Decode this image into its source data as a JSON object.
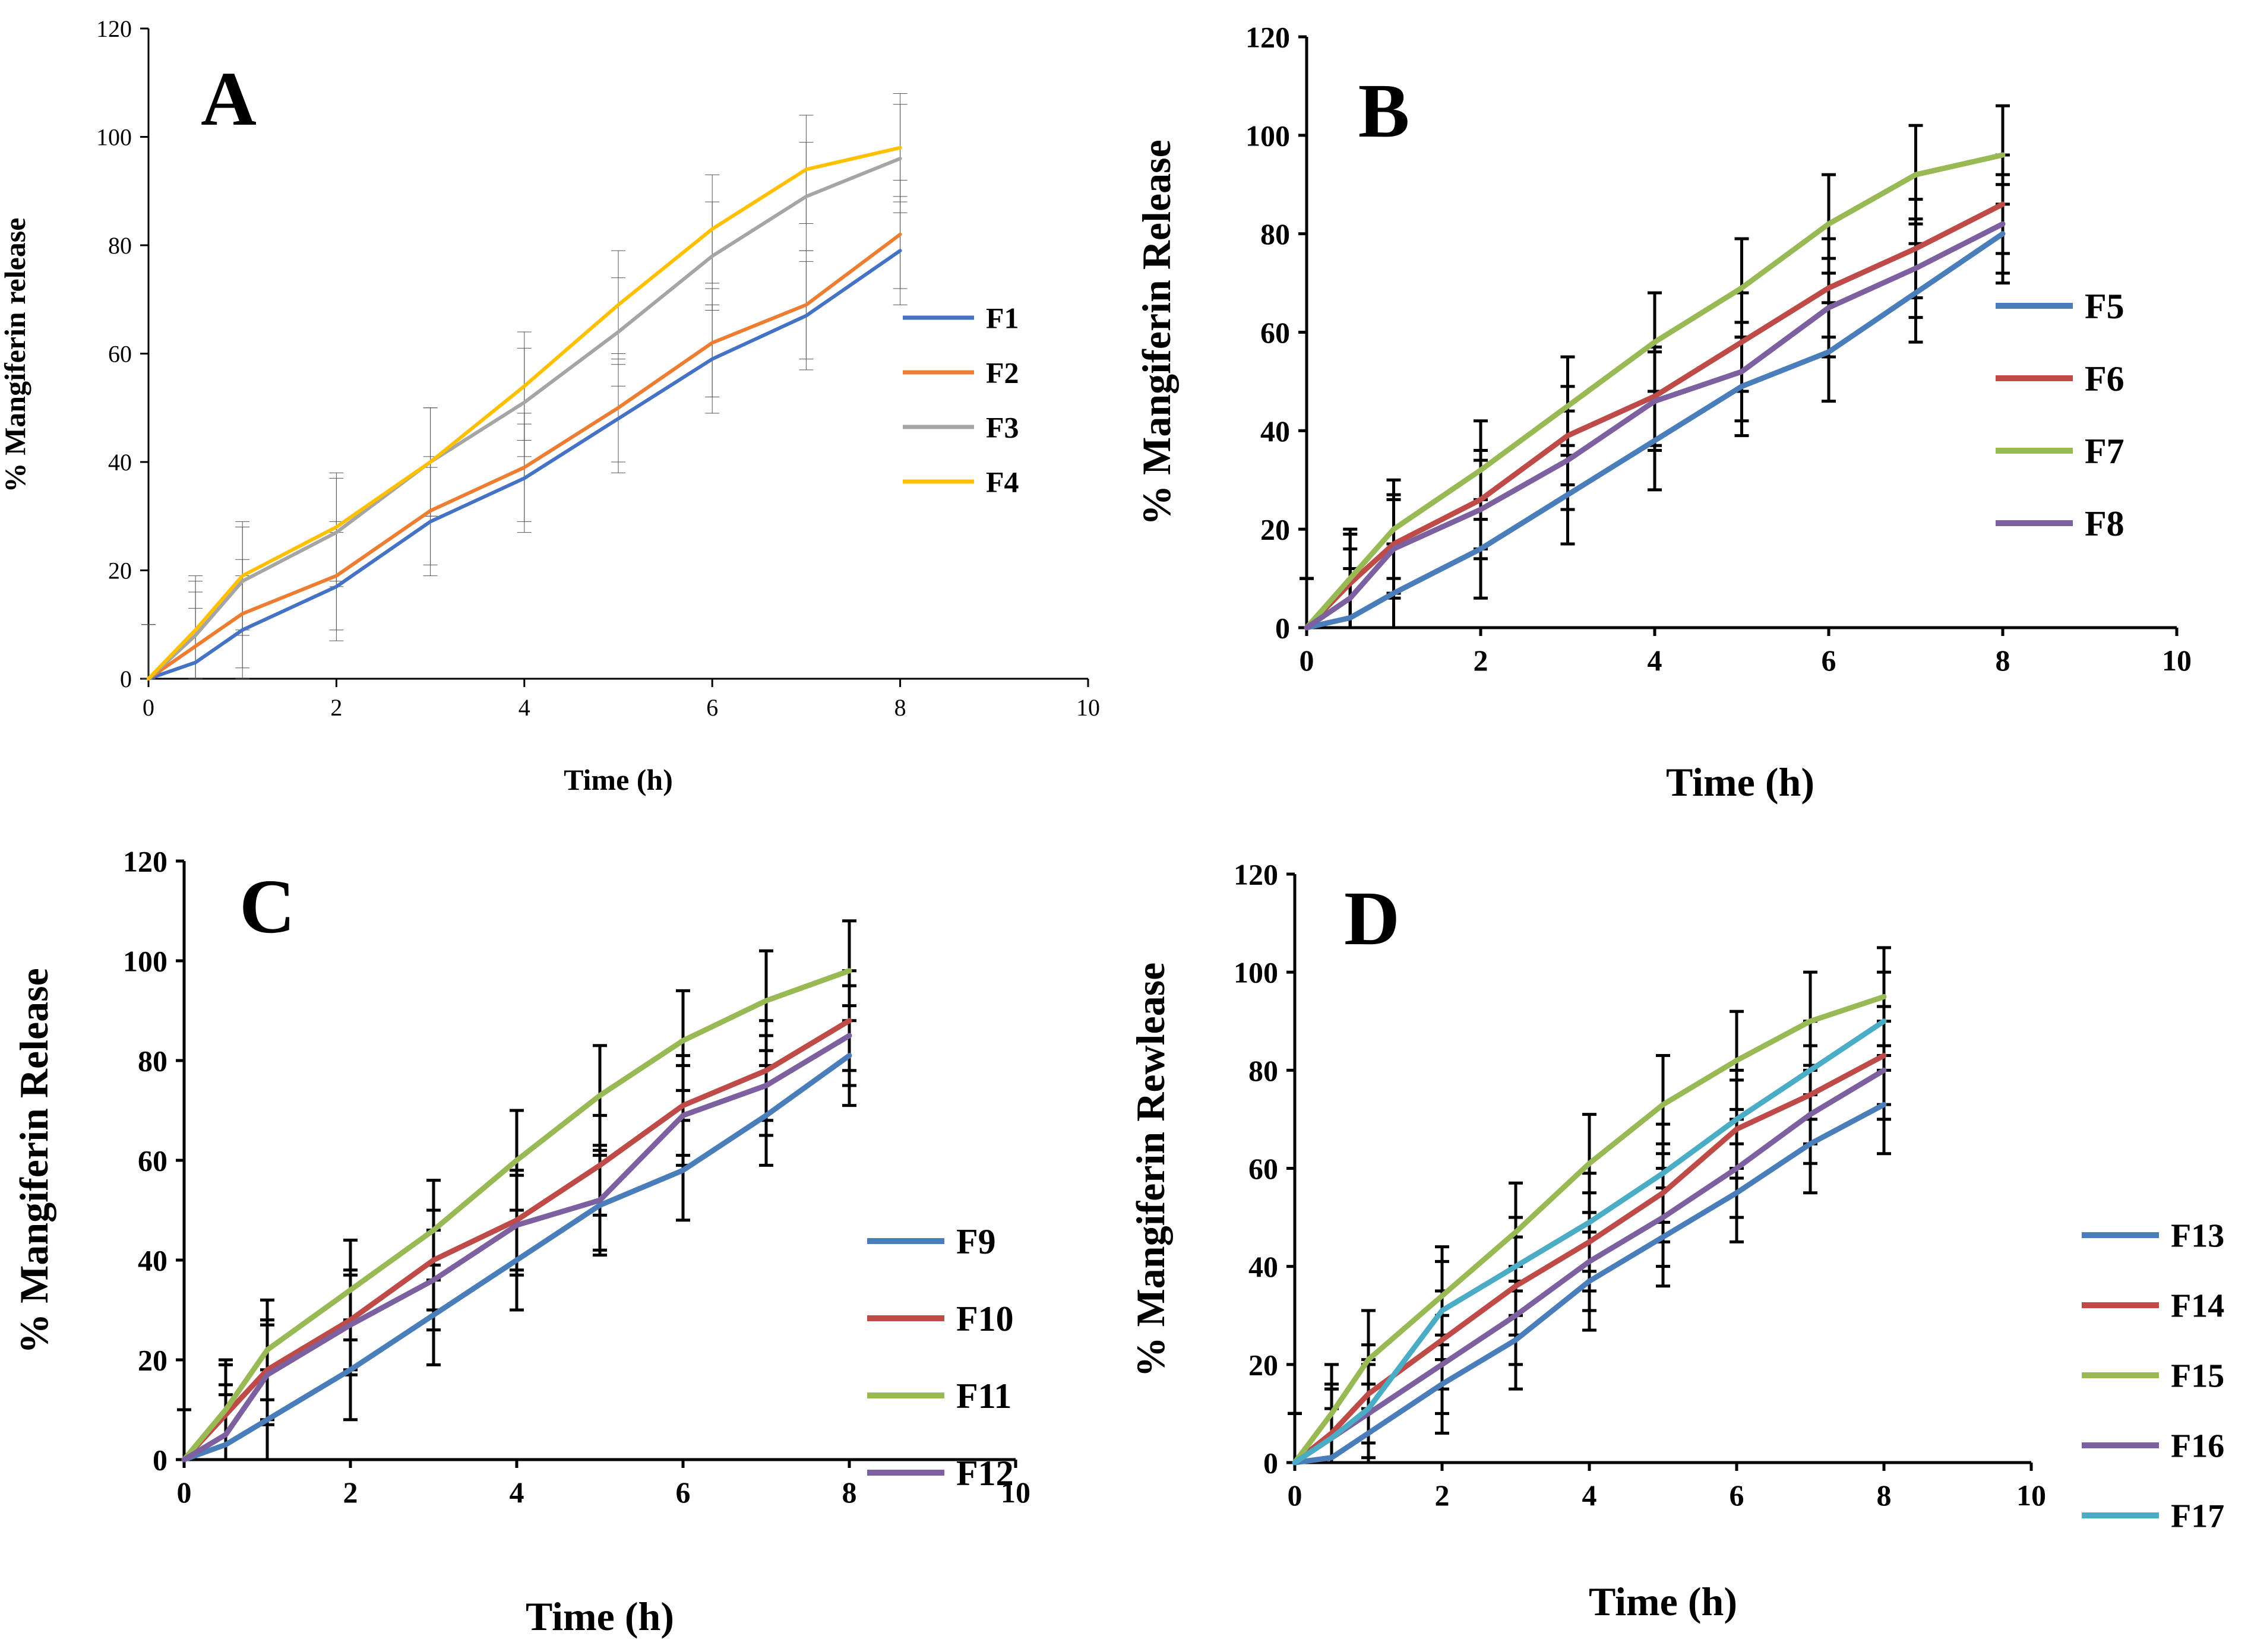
{
  "figure": {
    "background": "#ffffff"
  },
  "chart_data": [
    {
      "type": "line",
      "panel_label": "A",
      "xlabel": "Time (h)",
      "ylabel": "% Mangiferin release",
      "xlim": [
        0,
        10
      ],
      "ylim": [
        0,
        120
      ],
      "xticks": [
        "0",
        "2",
        "4",
        "6",
        "8",
        "10"
      ],
      "yticks": [
        "0",
        "20",
        "40",
        "60",
        "80",
        "100",
        "120"
      ],
      "grid": false,
      "legend_position": "right",
      "error_bar_color": "#555555",
      "x": [
        0,
        0.5,
        1,
        2,
        3,
        4,
        5,
        6,
        7,
        8
      ],
      "series": [
        {
          "name": "F1",
          "color": "#4472C4",
          "values": [
            0,
            3,
            9,
            17,
            29,
            37,
            48,
            59,
            67,
            79
          ],
          "errors": [
            10,
            10,
            10,
            10,
            10,
            10,
            10,
            10,
            10,
            10
          ]
        },
        {
          "name": "F2",
          "color": "#ED7D31",
          "values": [
            0,
            6,
            12,
            19,
            31,
            39,
            50,
            62,
            69,
            82
          ],
          "errors": [
            10,
            10,
            10,
            10,
            10,
            10,
            10,
            10,
            10,
            10
          ]
        },
        {
          "name": "F3",
          "color": "#A5A5A5",
          "values": [
            0,
            8,
            18,
            27,
            40,
            51,
            64,
            78,
            89,
            96
          ],
          "errors": [
            10,
            10,
            10,
            10,
            10,
            10,
            10,
            10,
            10,
            10
          ]
        },
        {
          "name": "F4",
          "color": "#FFC000",
          "values": [
            0,
            9,
            19,
            28,
            40,
            54,
            69,
            83,
            94,
            98
          ],
          "errors": [
            10,
            10,
            10,
            10,
            10,
            10,
            10,
            10,
            10,
            10
          ]
        }
      ]
    },
    {
      "type": "line",
      "panel_label": "B",
      "xlabel": "Time (h)",
      "ylabel": "% Mangiferin Release",
      "xlim": [
        0,
        10
      ],
      "ylim": [
        0,
        120
      ],
      "xticks": [
        "0",
        "2",
        "4",
        "6",
        "8",
        "10"
      ],
      "yticks": [
        "0",
        "20",
        "40",
        "60",
        "80",
        "100",
        "120"
      ],
      "grid": false,
      "legend_position": "right",
      "error_bar_color": "#000000",
      "x": [
        0,
        0.5,
        1,
        2,
        3,
        4,
        5,
        6,
        7,
        8
      ],
      "series": [
        {
          "name": "F5",
          "color": "#4A7EBB",
          "values": [
            0,
            2,
            7,
            16,
            27,
            38,
            49,
            56,
            68,
            80
          ],
          "errors": [
            10,
            10,
            10,
            10,
            10,
            10,
            10,
            10,
            10,
            10
          ]
        },
        {
          "name": "F6",
          "color": "#BE4B48",
          "values": [
            0,
            9,
            17,
            26,
            39,
            47,
            58,
            69,
            77,
            86
          ],
          "errors": [
            10,
            10,
            10,
            10,
            10,
            10,
            10,
            10,
            10,
            10
          ]
        },
        {
          "name": "F7",
          "color": "#98B954",
          "values": [
            0,
            10,
            20,
            32,
            45,
            58,
            69,
            82,
            92,
            96
          ],
          "errors": [
            10,
            10,
            10,
            10,
            10,
            10,
            10,
            10,
            10,
            10
          ]
        },
        {
          "name": "F8",
          "color": "#7D60A0",
          "values": [
            0,
            6,
            16,
            24,
            34,
            46,
            52,
            65,
            73,
            82
          ],
          "errors": [
            10,
            10,
            10,
            10,
            10,
            10,
            10,
            10,
            10,
            10
          ]
        }
      ]
    },
    {
      "type": "line",
      "panel_label": "C",
      "xlabel": "Time (h)",
      "ylabel": "% Mangiferin Release",
      "xlim": [
        0,
        10
      ],
      "ylim": [
        0,
        120
      ],
      "xticks": [
        "0",
        "2",
        "4",
        "6",
        "8",
        "10"
      ],
      "yticks": [
        "0",
        "20",
        "40",
        "60",
        "80",
        "100",
        "120"
      ],
      "grid": false,
      "legend_position": "right",
      "error_bar_color": "#000000",
      "x": [
        0,
        0.5,
        1,
        2,
        3,
        4,
        5,
        6,
        7,
        8
      ],
      "series": [
        {
          "name": "F9",
          "color": "#4A7EBB",
          "values": [
            0,
            3,
            8,
            18,
            29,
            40,
            51,
            58,
            69,
            81
          ],
          "errors": [
            10,
            10,
            10,
            10,
            10,
            10,
            10,
            10,
            10,
            10
          ]
        },
        {
          "name": "F10",
          "color": "#BE4B48",
          "values": [
            0,
            9,
            18,
            28,
            40,
            48,
            59,
            71,
            78,
            88
          ],
          "errors": [
            10,
            10,
            10,
            10,
            10,
            10,
            10,
            10,
            10,
            10
          ]
        },
        {
          "name": "F11",
          "color": "#98B954",
          "values": [
            0,
            10,
            22,
            34,
            46,
            60,
            73,
            84,
            92,
            98
          ],
          "errors": [
            10,
            10,
            10,
            10,
            10,
            10,
            10,
            10,
            10,
            10
          ]
        },
        {
          "name": "F12",
          "color": "#7D60A0",
          "values": [
            0,
            5,
            17,
            27,
            36,
            47,
            52,
            69,
            75,
            85
          ],
          "errors": [
            10,
            10,
            10,
            10,
            10,
            10,
            10,
            10,
            10,
            10
          ]
        }
      ]
    },
    {
      "type": "line",
      "panel_label": "D",
      "xlabel": "Time (h)",
      "ylabel": "% Mangiferin Rewlease",
      "xlim": [
        0,
        10
      ],
      "ylim": [
        0,
        120
      ],
      "xticks": [
        "0",
        "2",
        "4",
        "6",
        "8",
        "10"
      ],
      "yticks": [
        "0",
        "20",
        "40",
        "60",
        "80",
        "100",
        "120"
      ],
      "grid": false,
      "legend_position": "right",
      "error_bar_color": "#000000",
      "x": [
        0,
        0.5,
        1,
        2,
        3,
        4,
        5,
        6,
        7,
        8
      ],
      "series": [
        {
          "name": "F13",
          "color": "#4A7EBB",
          "values": [
            0,
            1,
            6,
            16,
            25,
            37,
            46,
            55,
            65,
            73
          ],
          "errors": [
            10,
            10,
            10,
            10,
            10,
            10,
            10,
            10,
            10,
            10
          ]
        },
        {
          "name": "F14",
          "color": "#BE4B48",
          "values": [
            0,
            6,
            14,
            25,
            36,
            45,
            55,
            68,
            75,
            83
          ],
          "errors": [
            10,
            10,
            10,
            10,
            10,
            10,
            10,
            10,
            10,
            10
          ]
        },
        {
          "name": "F15",
          "color": "#98B954",
          "values": [
            0,
            10,
            21,
            34,
            47,
            61,
            73,
            82,
            90,
            95
          ],
          "errors": [
            10,
            10,
            10,
            10,
            10,
            10,
            10,
            10,
            10,
            10
          ]
        },
        {
          "name": "F16",
          "color": "#7D60A0",
          "values": [
            0,
            5,
            10,
            20,
            30,
            41,
            50,
            60,
            71,
            80
          ],
          "errors": [
            10,
            10,
            10,
            10,
            10,
            10,
            10,
            10,
            10,
            10
          ]
        },
        {
          "name": "F17",
          "color": "#4BACC6",
          "values": [
            0,
            5,
            11,
            31,
            40,
            49,
            59,
            70,
            80,
            90
          ],
          "errors": [
            10,
            10,
            10,
            10,
            10,
            10,
            10,
            10,
            10,
            10
          ]
        }
      ]
    }
  ]
}
